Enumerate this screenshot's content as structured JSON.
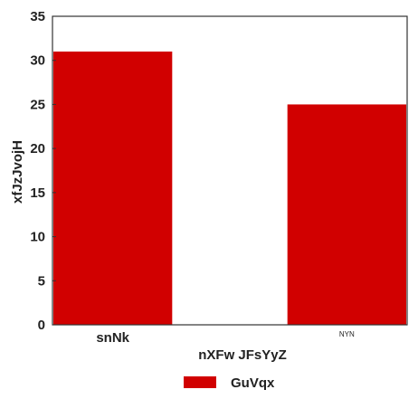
{
  "chart_data": {
    "type": "bar",
    "categories": [
      "snNk",
      "NYN"
    ],
    "series": [
      {
        "name": "GuVqx",
        "values": [
          31,
          25
        ],
        "color": "#d10000"
      }
    ],
    "title": "",
    "xlabel": "nXFw JFsYyZ",
    "ylabel": "xfJzJvojH",
    "ylim": [
      0,
      35
    ],
    "yticks": [
      0,
      5,
      10,
      15,
      20,
      25,
      30,
      35
    ],
    "grid": false,
    "legend_position": "bottom"
  }
}
